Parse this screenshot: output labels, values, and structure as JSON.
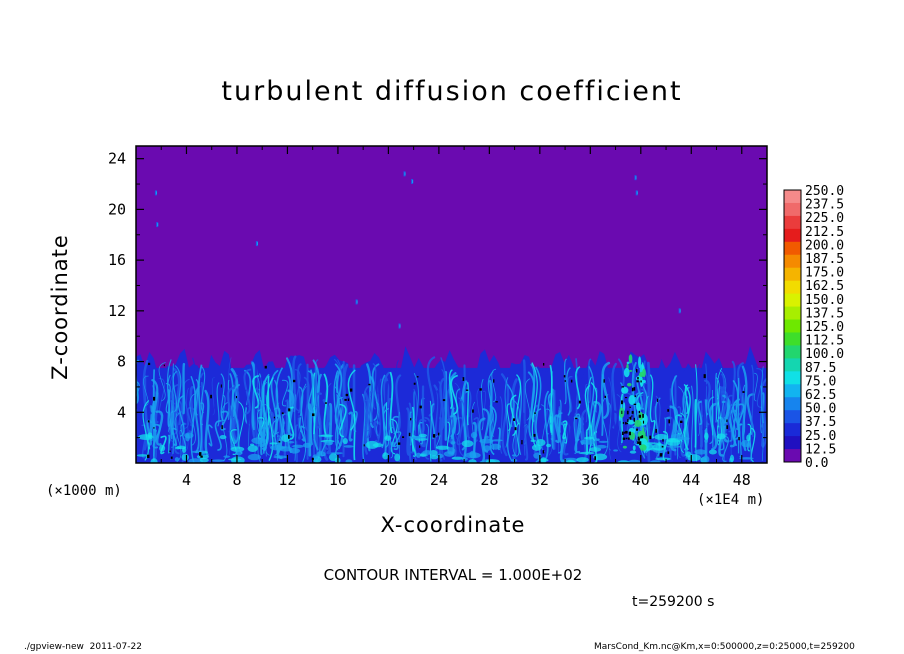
{
  "chart_data": {
    "type": "heatmap",
    "title": "turbulent diffusion coefficient",
    "xlabel": "X-coordinate",
    "ylabel": "Z-coordinate",
    "x_unit_left": "(×1000 m)",
    "x_unit_right": "(×1E4 m)",
    "xlim": [
      0,
      50
    ],
    "ylim": [
      0,
      25
    ],
    "x_ticks": [
      "4",
      "8",
      "12",
      "16",
      "20",
      "24",
      "28",
      "32",
      "36",
      "40",
      "44",
      "48"
    ],
    "x_tick_values": [
      4,
      8,
      12,
      16,
      20,
      24,
      28,
      32,
      36,
      40,
      44,
      48
    ],
    "y_ticks": [
      "4",
      "8",
      "12",
      "16",
      "20",
      "24"
    ],
    "y_tick_values": [
      4,
      8,
      12,
      16,
      20,
      24
    ],
    "field": {
      "background_value": 0.0,
      "turbulent_layer_top_z": 8.0,
      "turbulent_layer_values_range": [
        12.5,
        100.0
      ],
      "description_of_pattern": "turbulent plumes below ~8 km; near-zero above"
    },
    "colorbar": {
      "levels": [
        "250.0",
        "237.5",
        "225.0",
        "212.5",
        "200.0",
        "187.5",
        "175.0",
        "162.5",
        "150.0",
        "137.5",
        "125.0",
        "112.5",
        "100.0",
        "87.5",
        "75.0",
        "62.5",
        "50.0",
        "37.5",
        "25.0",
        "12.5",
        "0.0"
      ],
      "colors": [
        "#f58a8a",
        "#f06a6a",
        "#ea3c3c",
        "#e51c1c",
        "#f15a00",
        "#f58a00",
        "#f5b400",
        "#f2dc00",
        "#d9f200",
        "#a8ee00",
        "#6ee800",
        "#3ede2a",
        "#22d66e",
        "#14d6b0",
        "#10e0e6",
        "#12b4f0",
        "#1684ee",
        "#1a54e6",
        "#1a2ad8",
        "#2010c0",
        "#6a0ab0"
      ]
    },
    "colors": {
      "purple": "#6a0ab0",
      "dark_blue": "#1c2ad8",
      "blue": "#1e5ae8",
      "light_blue": "#1aa2f0",
      "cyan": "#14e0ec",
      "green": "#22d66e",
      "black": "#000000"
    }
  },
  "contour_interval": "CONTOUR INTERVAL = 1.000E+02",
  "timestamp": "t=259200 s",
  "footer_left": "./gpview-new  2011-07-22",
  "footer_right": "MarsCond_Km.nc@Km,x=0:500000,z=0:25000,t=259200"
}
